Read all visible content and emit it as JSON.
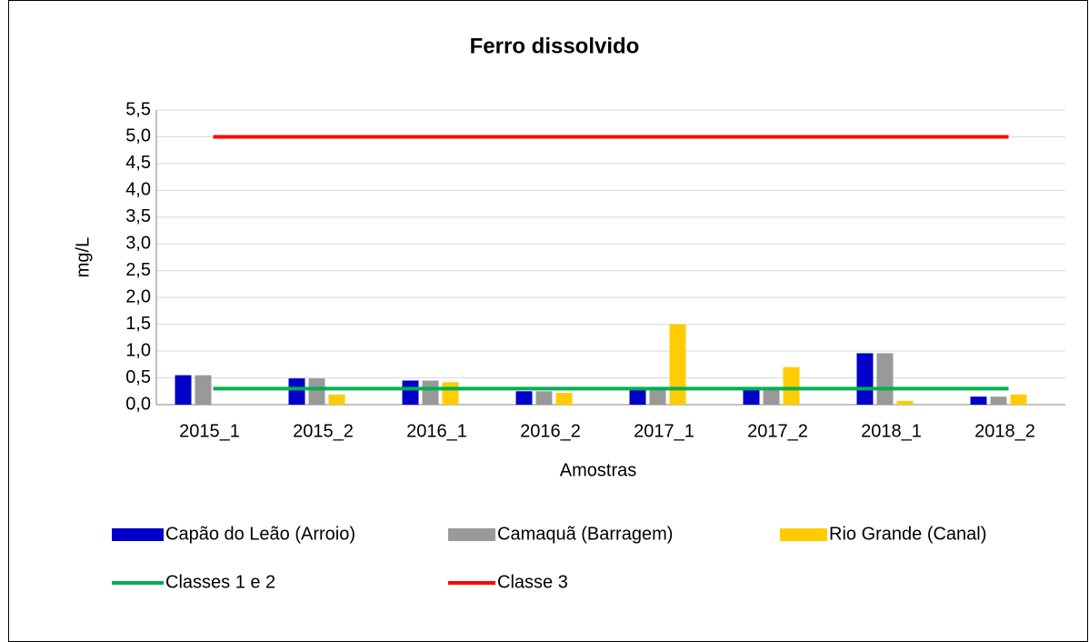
{
  "chart_data": {
    "type": "bar",
    "title": "Ferro dissolvido",
    "x_label": "Amostras",
    "y_label": "mg/L",
    "categories": [
      "2015_1",
      "2015_2",
      "2016_1",
      "2016_2",
      "2017_1",
      "2017_2",
      "2018_1",
      "2018_2"
    ],
    "series": [
      {
        "name": "Capão do Leão (Arroio)",
        "type": "bar",
        "color": "#0000c8",
        "values": [
          0.55,
          0.49,
          0.45,
          0.25,
          0.3,
          0.3,
          0.96,
          0.15
        ]
      },
      {
        "name": "Camaquã (Barragem)",
        "type": "bar",
        "color": "#999999",
        "values": [
          0.55,
          0.49,
          0.45,
          0.25,
          0.3,
          0.3,
          0.96,
          0.15
        ]
      },
      {
        "name": "Rio Grande (Canal)",
        "type": "bar",
        "color": "#ffcc00",
        "values": [
          null,
          0.19,
          0.42,
          0.22,
          1.5,
          0.7,
          0.07,
          0.19
        ]
      },
      {
        "name": "Classes 1 e 2",
        "type": "line",
        "color": "#00b050",
        "values": [
          0.3,
          0.3,
          0.3,
          0.3,
          0.3,
          0.3,
          0.3,
          0.3
        ]
      },
      {
        "name": "Classe 3",
        "type": "line",
        "color": "#ff0000",
        "values": [
          5,
          5,
          5,
          5,
          5,
          5,
          5,
          5
        ]
      }
    ],
    "ylim": [
      0,
      5.5
    ],
    "yticks": [
      {
        "value": 0,
        "label": "0,0"
      },
      {
        "value": 0.5,
        "label": "0,5"
      },
      {
        "value": 1,
        "label": "1,0"
      },
      {
        "value": 1.5,
        "label": "1,5"
      },
      {
        "value": 2,
        "label": "2,0"
      },
      {
        "value": 2.5,
        "label": "2,5"
      },
      {
        "value": 3,
        "label": "3,0"
      },
      {
        "value": 3.5,
        "label": "3,5"
      },
      {
        "value": 4,
        "label": "4,0"
      },
      {
        "value": 4.5,
        "label": "4,5"
      },
      {
        "value": 5,
        "label": "5,0"
      },
      {
        "value": 5.5,
        "label": "5,5"
      }
    ],
    "grid": true,
    "legend": "bottom"
  }
}
